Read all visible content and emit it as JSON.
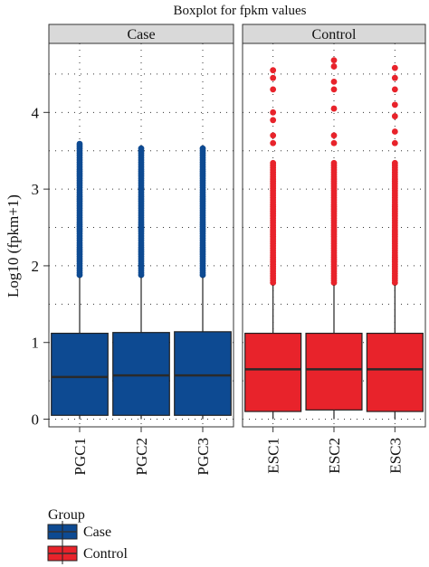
{
  "chart_data": {
    "type": "boxplot",
    "title": "Boxplot for fpkm values",
    "ylabel": "Log10 (fpkm+1)",
    "xlabel": "",
    "ylim": [
      -0.1,
      4.9
    ],
    "yticks": [
      0,
      1,
      2,
      3,
      4
    ],
    "grid": true,
    "legend_position": "bottom-left",
    "legend": {
      "title": "Group",
      "entries": [
        {
          "label": "Case",
          "color": "#0d4a92"
        },
        {
          "label": "Control",
          "color": "#e8232b"
        }
      ]
    },
    "panels": [
      {
        "label": "Case",
        "color": "#0d4a92",
        "boxes": [
          {
            "name": "PGC1",
            "lower_whisker": 0.0,
            "q1": 0.05,
            "median": 0.55,
            "q3": 1.12,
            "upper_whisker": 1.85,
            "max_outlier": 3.6
          },
          {
            "name": "PGC2",
            "lower_whisker": 0.0,
            "q1": 0.05,
            "median": 0.57,
            "q3": 1.13,
            "upper_whisker": 1.85,
            "max_outlier": 3.55
          },
          {
            "name": "PGC3",
            "lower_whisker": 0.0,
            "q1": 0.05,
            "median": 0.57,
            "q3": 1.14,
            "upper_whisker": 1.85,
            "max_outlier": 3.55
          }
        ]
      },
      {
        "label": "Control",
        "color": "#e8232b",
        "boxes": [
          {
            "name": "ESC1",
            "lower_whisker": 0.0,
            "q1": 0.1,
            "median": 0.65,
            "q3": 1.12,
            "upper_whisker": 1.75,
            "max_outlier": 3.35,
            "extra_outliers": [
              3.6,
              3.7,
              3.9,
              4.0,
              4.3,
              4.45,
              4.55
            ]
          },
          {
            "name": "ESC2",
            "lower_whisker": 0.0,
            "q1": 0.12,
            "median": 0.65,
            "q3": 1.12,
            "upper_whisker": 1.75,
            "max_outlier": 3.35,
            "extra_outliers": [
              3.6,
              3.7,
              4.05,
              4.3,
              4.4,
              4.6,
              4.68
            ]
          },
          {
            "name": "ESC3",
            "lower_whisker": 0.0,
            "q1": 0.1,
            "median": 0.65,
            "q3": 1.12,
            "upper_whisker": 1.75,
            "max_outlier": 3.35,
            "extra_outliers": [
              3.6,
              3.75,
              3.95,
              4.1,
              4.3,
              4.45,
              4.58
            ]
          }
        ]
      }
    ]
  }
}
